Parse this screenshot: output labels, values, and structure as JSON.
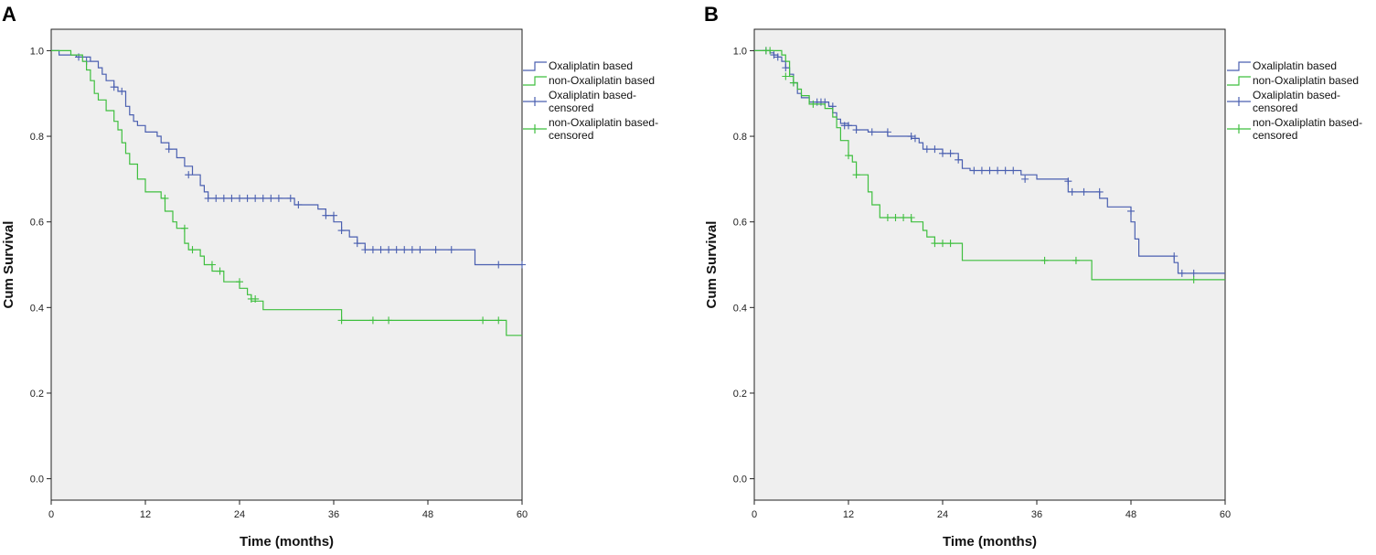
{
  "chart_data": [
    {
      "type": "line",
      "panel_label": "A",
      "xlabel": "Time (months)",
      "ylabel": "Cum Survival",
      "xlim": [
        0,
        60
      ],
      "ylim": [
        -0.05,
        1.05
      ],
      "xticks": [
        0,
        12,
        24,
        36,
        48,
        60
      ],
      "xtick_labels": [
        "0",
        "12",
        "24",
        "36",
        "48",
        "60"
      ],
      "yticks": [
        0.0,
        0.2,
        0.4,
        0.6,
        0.8,
        1.0
      ],
      "ytick_labels": [
        "0.0",
        "0.2",
        "0.4",
        "0.6",
        "0.8",
        "1.0"
      ],
      "legend_position": "top-right outside",
      "legend": [
        {
          "label": "Oxaliplatin based",
          "kind": "step",
          "color": "#4a5fb0"
        },
        {
          "label": "non-Oxaliplatin based",
          "kind": "step",
          "color": "#3fbf3f"
        },
        {
          "label": "Oxaliplatin based-\ncensored",
          "kind": "censor",
          "color": "#4a5fb0"
        },
        {
          "label": "non-Oxaliplatin based-\ncensored",
          "kind": "censor",
          "color": "#3fbf3f"
        }
      ],
      "series": [
        {
          "name": "Oxaliplatin based",
          "color": "#4a5fb0",
          "steps": [
            [
              0,
              1.0
            ],
            [
              1,
              0.99
            ],
            [
              3.2,
              0.985
            ],
            [
              5,
              0.975
            ],
            [
              6,
              0.96
            ],
            [
              6.5,
              0.945
            ],
            [
              7,
              0.93
            ],
            [
              8,
              0.915
            ],
            [
              8.5,
              0.905
            ],
            [
              9.5,
              0.87
            ],
            [
              10,
              0.85
            ],
            [
              10.5,
              0.835
            ],
            [
              11,
              0.825
            ],
            [
              12,
              0.81
            ],
            [
              13.5,
              0.8
            ],
            [
              14,
              0.785
            ],
            [
              15,
              0.77
            ],
            [
              16,
              0.75
            ],
            [
              17,
              0.73
            ],
            [
              18,
              0.71
            ],
            [
              19,
              0.685
            ],
            [
              19.5,
              0.67
            ],
            [
              20,
              0.655
            ],
            [
              31,
              0.64
            ],
            [
              34,
              0.63
            ],
            [
              35,
              0.615
            ],
            [
              36,
              0.6
            ],
            [
              37,
              0.58
            ],
            [
              38,
              0.565
            ],
            [
              39,
              0.55
            ],
            [
              40,
              0.535
            ],
            [
              54,
              0.5
            ],
            [
              60,
              0.5
            ]
          ],
          "censored": [
            [
              3.5,
              0.985
            ],
            [
              4.5,
              0.975
            ],
            [
              8,
              0.915
            ],
            [
              9,
              0.905
            ],
            [
              15,
              0.77
            ],
            [
              17.5,
              0.71
            ],
            [
              20,
              0.655
            ],
            [
              21,
              0.655
            ],
            [
              22,
              0.655
            ],
            [
              23,
              0.655
            ],
            [
              24,
              0.655
            ],
            [
              25,
              0.655
            ],
            [
              26,
              0.655
            ],
            [
              27,
              0.655
            ],
            [
              28,
              0.655
            ],
            [
              29,
              0.655
            ],
            [
              30.5,
              0.655
            ],
            [
              31.5,
              0.64
            ],
            [
              35,
              0.615
            ],
            [
              36,
              0.615
            ],
            [
              37,
              0.58
            ],
            [
              39,
              0.55
            ],
            [
              40,
              0.535
            ],
            [
              41,
              0.535
            ],
            [
              42,
              0.535
            ],
            [
              43,
              0.535
            ],
            [
              44,
              0.535
            ],
            [
              45,
              0.535
            ],
            [
              46,
              0.535
            ],
            [
              47,
              0.535
            ],
            [
              49,
              0.535
            ],
            [
              51,
              0.535
            ],
            [
              57,
              0.5
            ],
            [
              60,
              0.5
            ]
          ]
        },
        {
          "name": "non-Oxaliplatin based",
          "color": "#3fbf3f",
          "steps": [
            [
              0,
              1.0
            ],
            [
              2.5,
              0.99
            ],
            [
              4,
              0.975
            ],
            [
              4.5,
              0.955
            ],
            [
              5,
              0.93
            ],
            [
              5.5,
              0.9
            ],
            [
              6,
              0.885
            ],
            [
              7,
              0.86
            ],
            [
              8,
              0.835
            ],
            [
              8.5,
              0.815
            ],
            [
              9,
              0.785
            ],
            [
              9.5,
              0.76
            ],
            [
              10,
              0.735
            ],
            [
              11,
              0.7
            ],
            [
              12,
              0.67
            ],
            [
              14,
              0.655
            ],
            [
              14.5,
              0.625
            ],
            [
              15.5,
              0.6
            ],
            [
              16,
              0.585
            ],
            [
              17,
              0.55
            ],
            [
              17.5,
              0.535
            ],
            [
              19,
              0.52
            ],
            [
              19.5,
              0.5
            ],
            [
              20.5,
              0.485
            ],
            [
              22,
              0.46
            ],
            [
              24,
              0.445
            ],
            [
              25,
              0.43
            ],
            [
              25.5,
              0.415
            ],
            [
              27,
              0.395
            ],
            [
              37,
              0.37
            ],
            [
              58,
              0.335
            ],
            [
              60,
              0.335
            ]
          ],
          "censored": [
            [
              14.5,
              0.655
            ],
            [
              17,
              0.585
            ],
            [
              18,
              0.535
            ],
            [
              20.5,
              0.5
            ],
            [
              21.5,
              0.485
            ],
            [
              24,
              0.46
            ],
            [
              25.5,
              0.42
            ],
            [
              26,
              0.42
            ],
            [
              37,
              0.37
            ],
            [
              41,
              0.37
            ],
            [
              43,
              0.37
            ],
            [
              55,
              0.37
            ],
            [
              57,
              0.37
            ]
          ]
        }
      ]
    },
    {
      "type": "line",
      "panel_label": "B",
      "xlabel": "Time (months)",
      "ylabel": "Cum Survival",
      "xlim": [
        0,
        60
      ],
      "ylim": [
        -0.05,
        1.05
      ],
      "xticks": [
        0,
        12,
        24,
        36,
        48,
        60
      ],
      "xtick_labels": [
        "0",
        "12",
        "24",
        "36",
        "48",
        "60"
      ],
      "yticks": [
        0.4,
        0.6,
        0.8,
        1.0
      ],
      "ytick_labels": [
        "0.4",
        "0.6",
        "0.8",
        "1.0"
      ],
      "extra_yticks": [
        0.0,
        0.2
      ],
      "extra_ytick_labels": [
        "0.0",
        "0.2"
      ],
      "legend_position": "top-right outside",
      "legend": [
        {
          "label": "Oxaliplatin based",
          "kind": "step",
          "color": "#4a5fb0"
        },
        {
          "label": "non-Oxaliplatin based",
          "kind": "step",
          "color": "#3fbf3f"
        },
        {
          "label": "Oxaliplatin based-\ncensored",
          "kind": "censor",
          "color": "#4a5fb0"
        },
        {
          "label": "non-Oxaliplatin based-\ncensored",
          "kind": "censor",
          "color": "#3fbf3f"
        }
      ],
      "series": [
        {
          "name": "Oxaliplatin based",
          "color": "#4a5fb0",
          "steps": [
            [
              0,
              1.0
            ],
            [
              2,
              0.995
            ],
            [
              2.5,
              0.99
            ],
            [
              3,
              0.985
            ],
            [
              3.5,
              0.975
            ],
            [
              4,
              0.96
            ],
            [
              4.5,
              0.945
            ],
            [
              5,
              0.925
            ],
            [
              5.5,
              0.9
            ],
            [
              6,
              0.89
            ],
            [
              7,
              0.88
            ],
            [
              9.5,
              0.87
            ],
            [
              10,
              0.855
            ],
            [
              10.5,
              0.84
            ],
            [
              11,
              0.83
            ],
            [
              12,
              0.825
            ],
            [
              13,
              0.815
            ],
            [
              14.5,
              0.81
            ],
            [
              17,
              0.8
            ],
            [
              20,
              0.795
            ],
            [
              21,
              0.785
            ],
            [
              21.5,
              0.77
            ],
            [
              24,
              0.76
            ],
            [
              26,
              0.745
            ],
            [
              26.5,
              0.725
            ],
            [
              27.5,
              0.72
            ],
            [
              34,
              0.71
            ],
            [
              36,
              0.7
            ],
            [
              40,
              0.67
            ],
            [
              44,
              0.655
            ],
            [
              45,
              0.635
            ],
            [
              48,
              0.6
            ],
            [
              48.5,
              0.56
            ],
            [
              49,
              0.52
            ],
            [
              53.5,
              0.505
            ],
            [
              54,
              0.48
            ],
            [
              60,
              0.48
            ]
          ],
          "censored": [
            [
              1.5,
              1.0
            ],
            [
              2.5,
              0.99
            ],
            [
              3,
              0.985
            ],
            [
              4,
              0.96
            ],
            [
              5,
              0.925
            ],
            [
              8,
              0.88
            ],
            [
              8.5,
              0.88
            ],
            [
              9,
              0.88
            ],
            [
              10,
              0.87
            ],
            [
              11.5,
              0.825
            ],
            [
              12,
              0.825
            ],
            [
              13,
              0.815
            ],
            [
              15,
              0.81
            ],
            [
              17,
              0.81
            ],
            [
              20,
              0.8
            ],
            [
              20.5,
              0.795
            ],
            [
              22,
              0.77
            ],
            [
              23,
              0.77
            ],
            [
              24,
              0.76
            ],
            [
              25,
              0.76
            ],
            [
              26,
              0.745
            ],
            [
              28,
              0.72
            ],
            [
              29,
              0.72
            ],
            [
              30,
              0.72
            ],
            [
              31,
              0.72
            ],
            [
              32,
              0.72
            ],
            [
              33,
              0.72
            ],
            [
              34.5,
              0.7
            ],
            [
              40,
              0.695
            ],
            [
              40.5,
              0.67
            ],
            [
              42,
              0.67
            ],
            [
              44,
              0.67
            ],
            [
              48,
              0.625
            ],
            [
              53.5,
              0.52
            ],
            [
              54.5,
              0.48
            ],
            [
              56,
              0.48
            ]
          ]
        },
        {
          "name": "non-Oxaliplatin based",
          "color": "#3fbf3f",
          "steps": [
            [
              0,
              1.0
            ],
            [
              3.5,
              0.99
            ],
            [
              4,
              0.975
            ],
            [
              4.5,
              0.94
            ],
            [
              5,
              0.925
            ],
            [
              5.5,
              0.91
            ],
            [
              6,
              0.895
            ],
            [
              7,
              0.875
            ],
            [
              9,
              0.865
            ],
            [
              10,
              0.845
            ],
            [
              10.5,
              0.82
            ],
            [
              11,
              0.79
            ],
            [
              12,
              0.755
            ],
            [
              12.5,
              0.74
            ],
            [
              13,
              0.71
            ],
            [
              14.5,
              0.67
            ],
            [
              15,
              0.64
            ],
            [
              16,
              0.61
            ],
            [
              20,
              0.6
            ],
            [
              21.5,
              0.58
            ],
            [
              22,
              0.565
            ],
            [
              23,
              0.55
            ],
            [
              26.5,
              0.51
            ],
            [
              43,
              0.465
            ],
            [
              60,
              0.465
            ]
          ],
          "censored": [
            [
              1.5,
              1.0
            ],
            [
              2,
              1.0
            ],
            [
              4,
              0.94
            ],
            [
              5,
              0.925
            ],
            [
              7.5,
              0.875
            ],
            [
              12,
              0.755
            ],
            [
              13,
              0.71
            ],
            [
              17,
              0.61
            ],
            [
              18,
              0.61
            ],
            [
              19,
              0.61
            ],
            [
              20,
              0.61
            ],
            [
              23,
              0.55
            ],
            [
              24,
              0.55
            ],
            [
              25,
              0.55
            ],
            [
              37,
              0.51
            ],
            [
              41,
              0.51
            ],
            [
              56,
              0.465
            ]
          ]
        }
      ]
    }
  ]
}
